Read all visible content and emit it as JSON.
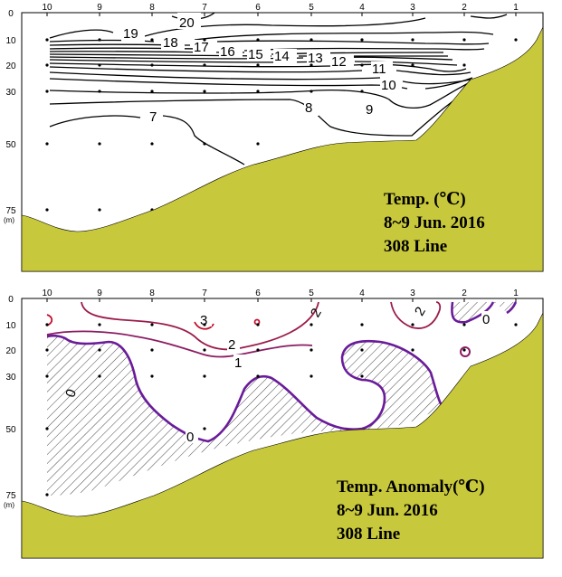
{
  "chart_data": [
    {
      "type": "contour",
      "station_labels": [
        "10",
        "9",
        "8",
        "7",
        "6",
        "5",
        "4",
        "3",
        "2",
        "1"
      ],
      "depth_labels": [
        "0",
        "10",
        "20",
        "30",
        "50",
        "75"
      ],
      "depth_unit": "(m)",
      "ylim": [
        0,
        75
      ],
      "contour_levels": [
        "20",
        "19",
        "18",
        "17",
        "16",
        "15",
        "14",
        "13",
        "12",
        "11",
        "10",
        "9",
        "8",
        "7"
      ],
      "title_lines": [
        "Temp. (℃)",
        "8~9 Jun. 2016",
        "308 Line"
      ],
      "colors": {
        "contour": "#000000",
        "seabed": "#c8c83c"
      }
    },
    {
      "type": "contour",
      "station_labels": [
        "10",
        "9",
        "8",
        "7",
        "6",
        "5",
        "4",
        "3",
        "2",
        "1"
      ],
      "depth_labels": [
        "0",
        "10",
        "20",
        "30",
        "50",
        "75"
      ],
      "depth_unit": "(m)",
      "ylim": [
        0,
        75
      ],
      "contour_levels": [
        "3",
        "2",
        "2",
        "2",
        "1",
        "0",
        "0",
        "0"
      ],
      "negative_region": "hatched",
      "title_lines": [
        "Temp. Anomaly(℃)",
        "8~9 Jun. 2016",
        "308 Line"
      ],
      "colors": {
        "zero_contour": "#6a1b9a",
        "contour_1": "#8b1c62",
        "contour_2": "#9b1b4b",
        "contour_3": "#c0102c",
        "seabed": "#c8c83c"
      }
    }
  ]
}
